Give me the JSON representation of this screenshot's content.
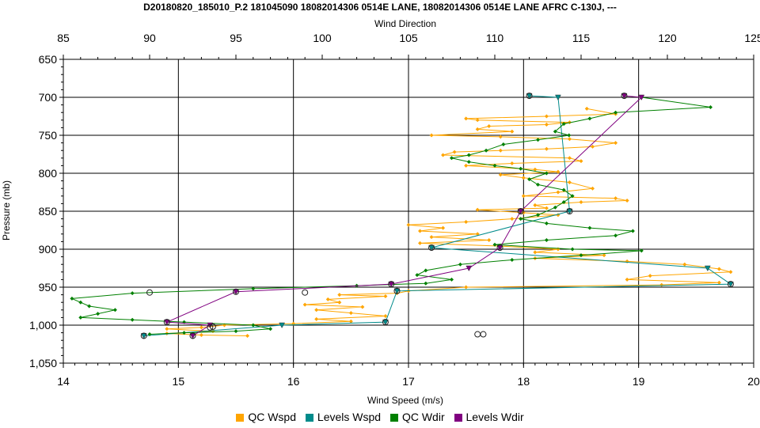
{
  "chart_data": {
    "type": "line",
    "title": "D20180820_185010_P.2 181045090 18082014306 0514E LANE, 18082014306 0514E LANE AFRC C-130J, ---",
    "xlabel": "Wind Speed (m/s)",
    "x2label": "Wind Direction",
    "ylabel": "Pressure (mb)",
    "xlim": [
      14,
      20
    ],
    "x2lim": [
      85,
      125
    ],
    "ylim": [
      650,
      1050
    ],
    "y_inverted": true,
    "grid": true,
    "legend_position": "bottom",
    "x_ticks": [
      "14",
      "15",
      "16",
      "17",
      "18",
      "19",
      "20"
    ],
    "x2_ticks": [
      "85",
      "90",
      "95",
      "100",
      "105",
      "110",
      "115",
      "120",
      "125"
    ],
    "y_ticks": [
      "650",
      "700",
      "750",
      "800",
      "850",
      "900",
      "950",
      "1,000",
      "1,050"
    ],
    "series": [
      {
        "name": "QC Wspd",
        "axis": "bottom",
        "color": "#FFA500",
        "marker": "diamond",
        "points": [
          [
            18.55,
            715
          ],
          [
            18.8,
            722
          ],
          [
            18.2,
            725
          ],
          [
            17.5,
            728
          ],
          [
            17.6,
            730
          ],
          [
            18.4,
            733
          ],
          [
            18.2,
            736
          ],
          [
            17.7,
            738
          ],
          [
            17.6,
            742
          ],
          [
            17.9,
            745
          ],
          [
            17.2,
            750
          ],
          [
            17.8,
            752
          ],
          [
            18.4,
            755
          ],
          [
            18.8,
            760
          ],
          [
            18.6,
            765
          ],
          [
            18.2,
            768
          ],
          [
            17.8,
            770
          ],
          [
            17.4,
            772
          ],
          [
            17.3,
            776
          ],
          [
            18.4,
            780
          ],
          [
            18.5,
            784
          ],
          [
            17.9,
            787
          ],
          [
            17.5,
            790
          ],
          [
            18.1,
            795
          ],
          [
            18.3,
            798
          ],
          [
            17.8,
            802
          ],
          [
            18.0,
            806
          ],
          [
            18.4,
            812
          ],
          [
            18.6,
            820
          ],
          [
            18.3,
            825
          ],
          [
            18.0,
            830
          ],
          [
            18.8,
            833
          ],
          [
            18.9,
            836
          ],
          [
            18.5,
            838
          ],
          [
            18.1,
            842
          ],
          [
            18.2,
            846
          ],
          [
            17.6,
            848
          ],
          [
            18.0,
            852
          ],
          [
            18.3,
            855
          ],
          [
            17.9,
            860
          ],
          [
            17.5,
            864
          ],
          [
            17.0,
            868
          ],
          [
            17.3,
            872
          ],
          [
            17.1,
            876
          ],
          [
            17.6,
            880
          ],
          [
            17.2,
            884
          ],
          [
            17.7,
            888
          ],
          [
            17.1,
            892
          ],
          [
            17.8,
            896
          ],
          [
            18.3,
            900
          ],
          [
            18.1,
            904
          ],
          [
            18.7,
            908
          ],
          [
            18.1,
            912
          ],
          [
            18.9,
            916
          ],
          [
            19.4,
            920
          ],
          [
            19.7,
            926
          ],
          [
            19.8,
            930
          ],
          [
            19.1,
            935
          ],
          [
            18.9,
            940
          ],
          [
            19.7,
            944
          ],
          [
            19.2,
            947
          ],
          [
            17.5,
            950
          ],
          [
            17.0,
            955
          ],
          [
            16.9,
            958
          ],
          [
            16.4,
            960
          ],
          [
            16.8,
            962
          ],
          [
            16.3,
            966
          ],
          [
            16.4,
            970
          ],
          [
            16.1,
            973
          ],
          [
            16.6,
            976
          ],
          [
            16.2,
            980
          ],
          [
            16.5,
            984
          ],
          [
            16.8,
            988
          ],
          [
            16.2,
            992
          ],
          [
            16.5,
            995
          ],
          [
            16.0,
            998
          ],
          [
            15.4,
            1000
          ],
          [
            15.2,
            1003
          ],
          [
            14.9,
            1005
          ],
          [
            15.3,
            1008
          ],
          [
            14.9,
            1011
          ],
          [
            15.2,
            1013
          ],
          [
            15.6,
            1014
          ]
        ]
      },
      {
        "name": "Levels Wspd",
        "axis": "bottom",
        "color": "#008B8B",
        "marker": "triangle-down",
        "points": [
          [
            18.05,
            698
          ],
          [
            18.3,
            700
          ],
          [
            18.4,
            850
          ],
          [
            17.2,
            898
          ],
          [
            19.6,
            925
          ],
          [
            19.8,
            946
          ],
          [
            16.9,
            955
          ],
          [
            16.8,
            996
          ],
          [
            15.9,
            1000
          ],
          [
            14.7,
            1014
          ]
        ]
      },
      {
        "name": "QC Wdir",
        "axis": "top",
        "color": "#008000",
        "marker": "diamond",
        "points": [
          [
            118.5,
            700
          ],
          [
            122.5,
            713
          ],
          [
            117,
            720
          ],
          [
            115.5,
            728
          ],
          [
            114,
            735
          ],
          [
            113.5,
            745
          ],
          [
            114.3,
            750
          ],
          [
            112.5,
            756
          ],
          [
            110.5,
            762
          ],
          [
            109.5,
            770
          ],
          [
            108.5,
            776
          ],
          [
            107.5,
            780
          ],
          [
            108.5,
            785
          ],
          [
            110,
            790
          ],
          [
            111.5,
            794
          ],
          [
            113,
            800
          ],
          [
            112,
            808
          ],
          [
            112.5,
            815
          ],
          [
            114,
            822
          ],
          [
            114.5,
            830
          ],
          [
            114,
            838
          ],
          [
            113.5,
            845
          ],
          [
            112.5,
            855
          ],
          [
            111.5,
            860
          ],
          [
            113,
            866
          ],
          [
            115.5,
            872
          ],
          [
            118,
            876
          ],
          [
            117,
            882
          ],
          [
            113,
            888
          ],
          [
            110,
            894
          ],
          [
            114.5,
            900
          ],
          [
            118.5,
            902
          ],
          [
            115,
            908
          ],
          [
            111,
            914
          ],
          [
            108,
            920
          ],
          [
            106,
            928
          ],
          [
            105.5,
            934
          ],
          [
            107.5,
            940
          ],
          [
            106,
            945
          ],
          [
            102,
            948
          ],
          [
            96,
            952
          ],
          [
            89,
            958
          ],
          [
            85.5,
            965
          ],
          [
            86,
            970
          ],
          [
            86.5,
            975
          ],
          [
            88,
            980
          ],
          [
            87,
            985
          ],
          [
            86,
            990
          ],
          [
            89,
            993
          ],
          [
            92,
            996
          ],
          [
            96,
            1000
          ],
          [
            97,
            1005
          ],
          [
            95,
            1008
          ],
          [
            92,
            1010
          ],
          [
            90,
            1012
          ]
        ]
      },
      {
        "name": "Levels Wdir",
        "axis": "top",
        "color": "#800080",
        "marker": "triangle-down",
        "points": [
          [
            117.5,
            698
          ],
          [
            118.5,
            700
          ],
          [
            111.5,
            850
          ],
          [
            110.3,
            898
          ],
          [
            108.5,
            925
          ],
          [
            104,
            946
          ],
          [
            95,
            956
          ],
          [
            91,
            996
          ],
          [
            93.5,
            1000
          ],
          [
            92.5,
            1014
          ]
        ]
      }
    ],
    "circles_wspd": [
      [
        18.05,
        698
      ],
      [
        18.4,
        850
      ],
      [
        17.2,
        898
      ],
      [
        19.8,
        946
      ],
      [
        16.9,
        955
      ],
      [
        16.8,
        996
      ],
      [
        14.7,
        1014
      ],
      [
        14.75,
        957
      ],
      [
        16.1,
        957
      ],
      [
        17.6,
        1012
      ],
      [
        17.65,
        1012
      ],
      [
        15.3,
        1002
      ]
    ],
    "circles_wdir": [
      [
        117.5,
        698
      ],
      [
        111.5,
        850
      ],
      [
        110.3,
        898
      ],
      [
        104,
        946
      ],
      [
        95,
        956
      ],
      [
        91,
        996
      ],
      [
        92.5,
        1014
      ],
      [
        93.5,
        1003
      ]
    ]
  }
}
